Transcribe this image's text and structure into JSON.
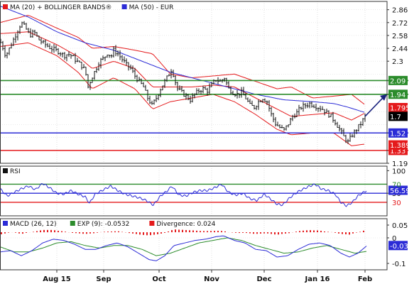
{
  "chart_data": [
    {
      "type": "line",
      "panel": "price",
      "legend": [
        {
          "label": "MA (20) + BOLLINGER BANDS®",
          "color": "#e41a1c"
        },
        {
          "label": "MA (50) - EUR",
          "color": "#2b2bd6"
        }
      ],
      "ylim": [
        1.19,
        2.95
      ],
      "yticks": [
        2.86,
        2.72,
        2.58,
        2.44,
        2.3,
        2.16,
        2.02,
        1.88,
        1.75,
        1.61,
        1.47,
        1.33,
        1.19
      ],
      "price_anchors": [
        [
          0,
          2.52
        ],
        [
          4,
          2.45
        ],
        [
          8,
          2.36
        ],
        [
          12,
          2.42
        ],
        [
          18,
          2.52
        ],
        [
          24,
          2.62
        ],
        [
          30,
          2.72
        ],
        [
          36,
          2.66
        ],
        [
          42,
          2.58
        ],
        [
          48,
          2.62
        ],
        [
          54,
          2.54
        ],
        [
          60,
          2.5
        ],
        [
          66,
          2.47
        ],
        [
          72,
          2.44
        ],
        [
          78,
          2.42
        ],
        [
          84,
          2.4
        ],
        [
          90,
          2.36
        ],
        [
          96,
          2.38
        ],
        [
          102,
          2.35
        ],
        [
          108,
          2.3
        ],
        [
          114,
          2.26
        ],
        [
          120,
          2.2
        ],
        [
          124,
          2.02
        ],
        [
          128,
          2.1
        ],
        [
          134,
          2.2
        ],
        [
          140,
          2.3
        ],
        [
          146,
          2.33
        ],
        [
          152,
          2.4
        ],
        [
          156,
          2.34
        ],
        [
          160,
          2.42
        ],
        [
          166,
          2.38
        ],
        [
          172,
          2.32
        ],
        [
          178,
          2.26
        ],
        [
          184,
          2.22
        ],
        [
          190,
          2.14
        ],
        [
          196,
          2.08
        ],
        [
          202,
          2.02
        ],
        [
          208,
          1.9
        ],
        [
          214,
          1.82
        ],
        [
          220,
          1.9
        ],
        [
          226,
          2.0
        ],
        [
          232,
          2.08
        ],
        [
          238,
          2.16
        ],
        [
          242,
          2.22
        ],
        [
          246,
          2.1
        ],
        [
          250,
          2.0
        ],
        [
          256,
          1.96
        ],
        [
          262,
          1.92
        ],
        [
          268,
          1.88
        ],
        [
          274,
          1.94
        ],
        [
          280,
          1.98
        ],
        [
          286,
          2.0
        ],
        [
          292,
          1.98
        ],
        [
          298,
          2.04
        ],
        [
          304,
          2.1
        ],
        [
          310,
          2.08
        ],
        [
          316,
          2.12
        ],
        [
          322,
          2.0
        ],
        [
          328,
          1.96
        ],
        [
          334,
          1.94
        ],
        [
          340,
          1.96
        ],
        [
          346,
          1.9
        ],
        [
          352,
          1.82
        ],
        [
          358,
          1.8
        ],
        [
          364,
          1.86
        ],
        [
          370,
          1.9
        ],
        [
          376,
          1.86
        ],
        [
          382,
          1.72
        ],
        [
          388,
          1.62
        ],
        [
          394,
          1.58
        ],
        [
          400,
          1.55
        ],
        [
          406,
          1.62
        ],
        [
          412,
          1.7
        ],
        [
          418,
          1.74
        ],
        [
          424,
          1.8
        ],
        [
          430,
          1.82
        ],
        [
          436,
          1.84
        ],
        [
          442,
          1.82
        ],
        [
          448,
          1.8
        ],
        [
          454,
          1.78
        ],
        [
          460,
          1.74
        ],
        [
          466,
          1.7
        ],
        [
          472,
          1.64
        ],
        [
          478,
          1.56
        ],
        [
          484,
          1.48
        ],
        [
          490,
          1.42
        ],
        [
          496,
          1.5
        ],
        [
          502,
          1.56
        ],
        [
          508,
          1.62
        ],
        [
          514,
          1.7
        ]
      ],
      "ma20_anchors": [
        [
          0,
          2.6
        ],
        [
          40,
          2.62
        ],
        [
          80,
          2.48
        ],
        [
          110,
          2.35
        ],
        [
          130,
          2.22
        ],
        [
          160,
          2.3
        ],
        [
          190,
          2.22
        ],
        [
          215,
          2.02
        ],
        [
          240,
          2.02
        ],
        [
          270,
          2.02
        ],
        [
          300,
          2.04
        ],
        [
          330,
          2.02
        ],
        [
          360,
          1.9
        ],
        [
          390,
          1.78
        ],
        [
          410,
          1.7
        ],
        [
          440,
          1.72
        ],
        [
          470,
          1.74
        ],
        [
          495,
          1.66
        ],
        [
          515,
          1.74
        ]
      ],
      "upper_band_anchors": [
        [
          0,
          2.72
        ],
        [
          40,
          2.8
        ],
        [
          80,
          2.66
        ],
        [
          110,
          2.56
        ],
        [
          130,
          2.44
        ],
        [
          160,
          2.46
        ],
        [
          190,
          2.42
        ],
        [
          215,
          2.38
        ],
        [
          240,
          2.16
        ],
        [
          270,
          2.12
        ],
        [
          300,
          2.14
        ],
        [
          330,
          2.16
        ],
        [
          360,
          2.08
        ],
        [
          390,
          2.0
        ],
        [
          410,
          2.02
        ],
        [
          440,
          1.9
        ],
        [
          470,
          1.92
        ],
        [
          495,
          1.94
        ],
        [
          515,
          1.82
        ]
      ],
      "lower_band_anchors": [
        [
          0,
          2.46
        ],
        [
          40,
          2.5
        ],
        [
          80,
          2.36
        ],
        [
          110,
          2.18
        ],
        [
          130,
          2.0
        ],
        [
          160,
          2.12
        ],
        [
          190,
          2.0
        ],
        [
          215,
          1.78
        ],
        [
          240,
          1.86
        ],
        [
          270,
          1.9
        ],
        [
          300,
          1.94
        ],
        [
          330,
          1.86
        ],
        [
          360,
          1.72
        ],
        [
          390,
          1.56
        ],
        [
          410,
          1.5
        ],
        [
          440,
          1.52
        ],
        [
          470,
          1.52
        ],
        [
          495,
          1.38
        ],
        [
          515,
          1.4
        ]
      ],
      "ma50_anchors": [
        [
          0,
          2.9
        ],
        [
          40,
          2.78
        ],
        [
          80,
          2.62
        ],
        [
          120,
          2.5
        ],
        [
          160,
          2.42
        ],
        [
          200,
          2.3
        ],
        [
          240,
          2.18
        ],
        [
          280,
          2.1
        ],
        [
          320,
          2.02
        ],
        [
          360,
          1.94
        ],
        [
          400,
          1.88
        ],
        [
          440,
          1.86
        ],
        [
          470,
          1.84
        ],
        [
          490,
          1.8
        ],
        [
          515,
          1.74
        ]
      ],
      "levels": [
        {
          "value": 2.09,
          "label": "2.09",
          "color": "#2c8c2c"
        },
        {
          "value": 1.94,
          "label": "1.94",
          "color": "#2c8c2c"
        },
        {
          "value": 1.52,
          "label": "1.52",
          "color": "#2b2bd6"
        },
        {
          "value": 1.33,
          "label": "1.33",
          "color": "#e41a1c"
        }
      ],
      "value_badges": [
        {
          "value": 1.7958,
          "label": "1.7958",
          "color": "#e41a1c"
        },
        {
          "value": 1.7,
          "label": "1.7",
          "color": "#000000"
        },
        {
          "value": 1.3897,
          "label": "1.3897",
          "color": "#e41a1c"
        }
      ],
      "forecast_arrow": {
        "from": [
          514,
          1.7
        ],
        "to": [
          545,
          1.94
        ]
      }
    },
    {
      "type": "line",
      "panel": "rsi",
      "legend": [
        {
          "label": "RSI",
          "color": "#111111"
        }
      ],
      "ylim": [
        0,
        110
      ],
      "yticks": [
        100,
        70,
        50,
        30,
        0
      ],
      "levels": [
        {
          "value": 70,
          "label": "70",
          "color": "#2c8c2c"
        },
        {
          "value": 50,
          "label": "",
          "color": "#2b2bd6"
        },
        {
          "value": 30,
          "label": "30",
          "color": "#e41a1c"
        }
      ],
      "value_badges": [
        {
          "value": 56.59,
          "label": "56.59",
          "color": "#2b2bd6"
        }
      ],
      "rsi_anchors": [
        [
          0,
          60
        ],
        [
          10,
          44
        ],
        [
          20,
          52
        ],
        [
          30,
          60
        ],
        [
          40,
          66
        ],
        [
          50,
          58
        ],
        [
          60,
          72
        ],
        [
          70,
          62
        ],
        [
          80,
          50
        ],
        [
          90,
          48
        ],
        [
          100,
          56
        ],
        [
          110,
          48
        ],
        [
          120,
          42
        ],
        [
          126,
          28
        ],
        [
          134,
          48
        ],
        [
          146,
          58
        ],
        [
          156,
          66
        ],
        [
          166,
          56
        ],
        [
          176,
          48
        ],
        [
          186,
          44
        ],
        [
          196,
          40
        ],
        [
          206,
          34
        ],
        [
          216,
          24
        ],
        [
          226,
          44
        ],
        [
          236,
          56
        ],
        [
          242,
          66
        ],
        [
          252,
          46
        ],
        [
          262,
          44
        ],
        [
          272,
          52
        ],
        [
          282,
          56
        ],
        [
          292,
          56
        ],
        [
          302,
          62
        ],
        [
          312,
          70
        ],
        [
          322,
          52
        ],
        [
          332,
          46
        ],
        [
          342,
          50
        ],
        [
          352,
          38
        ],
        [
          362,
          34
        ],
        [
          372,
          48
        ],
        [
          382,
          36
        ],
        [
          390,
          26
        ],
        [
          398,
          24
        ],
        [
          408,
          40
        ],
        [
          418,
          52
        ],
        [
          428,
          60
        ],
        [
          436,
          66
        ],
        [
          444,
          70
        ],
        [
          452,
          60
        ],
        [
          462,
          56
        ],
        [
          472,
          48
        ],
        [
          480,
          30
        ],
        [
          488,
          22
        ],
        [
          496,
          30
        ],
        [
          504,
          44
        ],
        [
          512,
          52
        ],
        [
          516,
          56
        ]
      ]
    },
    {
      "type": "bar",
      "panel": "macd",
      "legend": [
        {
          "label": "MACD (26, 12)",
          "color": "#2b2bd6"
        },
        {
          "label": "EXP (9): -0.0532",
          "color": "#2c8c2c"
        },
        {
          "label": "Divergence: 0.024",
          "color": "#e41a1c"
        }
      ],
      "ylim": [
        -0.125,
        0.075
      ],
      "yticks": [
        0.05,
        0,
        -0.05,
        -0.1
      ],
      "value_badges": [
        {
          "value": -0.03,
          "label": "-0.03",
          "color": "#2b2bd6"
        }
      ],
      "macd_anchors": [
        [
          0,
          -0.055
        ],
        [
          15,
          -0.05
        ],
        [
          30,
          -0.07
        ],
        [
          45,
          -0.05
        ],
        [
          60,
          -0.02
        ],
        [
          75,
          -0.005
        ],
        [
          90,
          -0.01
        ],
        [
          105,
          -0.025
        ],
        [
          120,
          -0.045
        ],
        [
          135,
          -0.045
        ],
        [
          150,
          -0.03
        ],
        [
          165,
          -0.02
        ],
        [
          180,
          -0.035
        ],
        [
          195,
          -0.06
        ],
        [
          210,
          -0.085
        ],
        [
          220,
          -0.09
        ],
        [
          232,
          -0.07
        ],
        [
          245,
          -0.03
        ],
        [
          260,
          -0.02
        ],
        [
          275,
          -0.01
        ],
        [
          290,
          -0.005
        ],
        [
          305,
          0.005
        ],
        [
          315,
          0.008
        ],
        [
          330,
          -0.01
        ],
        [
          345,
          -0.02
        ],
        [
          360,
          -0.045
        ],
        [
          375,
          -0.05
        ],
        [
          390,
          -0.075
        ],
        [
          405,
          -0.07
        ],
        [
          420,
          -0.045
        ],
        [
          435,
          -0.025
        ],
        [
          450,
          -0.02
        ],
        [
          465,
          -0.03
        ],
        [
          480,
          -0.06
        ],
        [
          492,
          -0.075
        ],
        [
          504,
          -0.06
        ],
        [
          516,
          -0.032
        ]
      ],
      "signal_anchors": [
        [
          0,
          -0.035
        ],
        [
          20,
          -0.055
        ],
        [
          40,
          -0.055
        ],
        [
          60,
          -0.04
        ],
        [
          80,
          -0.02
        ],
        [
          100,
          -0.015
        ],
        [
          120,
          -0.03
        ],
        [
          140,
          -0.04
        ],
        [
          160,
          -0.03
        ],
        [
          180,
          -0.03
        ],
        [
          200,
          -0.045
        ],
        [
          220,
          -0.07
        ],
        [
          240,
          -0.06
        ],
        [
          260,
          -0.04
        ],
        [
          280,
          -0.02
        ],
        [
          300,
          -0.01
        ],
        [
          320,
          0
        ],
        [
          340,
          -0.01
        ],
        [
          360,
          -0.03
        ],
        [
          380,
          -0.045
        ],
        [
          400,
          -0.06
        ],
        [
          420,
          -0.055
        ],
        [
          440,
          -0.04
        ],
        [
          460,
          -0.03
        ],
        [
          480,
          -0.045
        ],
        [
          500,
          -0.06
        ],
        [
          516,
          -0.053
        ]
      ],
      "hist_step": 5
    }
  ],
  "x_axis": {
    "labels": [
      {
        "x": 80,
        "label": "Aug 15"
      },
      {
        "x": 146,
        "label": "Sep"
      },
      {
        "x": 224,
        "label": "Oct"
      },
      {
        "x": 298,
        "label": "Nov"
      },
      {
        "x": 372,
        "label": "Dec"
      },
      {
        "x": 447,
        "label": "Jan 16"
      },
      {
        "x": 514,
        "label": "Feb"
      }
    ]
  }
}
